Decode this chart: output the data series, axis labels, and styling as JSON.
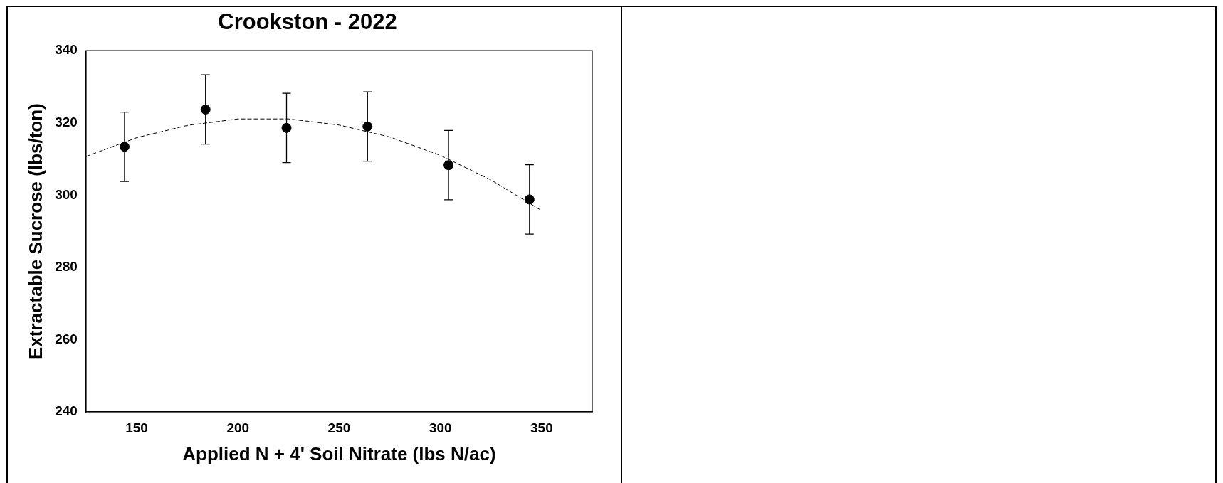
{
  "chart_data": {
    "type": "scatter",
    "title": "Crookston - 2022",
    "xlabel": "Applied N + 4' Soil Nitrate (lbs N/ac)",
    "ylabel": "Extractable Sucrose (lbs/ton)",
    "xlim": [
      125,
      375
    ],
    "xticks": [
      150,
      200,
      250,
      300,
      350
    ],
    "ylim": [
      240,
      340
    ],
    "yticks": [
      240,
      260,
      280,
      300,
      320,
      340
    ],
    "grid": false,
    "legend": false,
    "marker": "circle",
    "series": [
      {
        "color": "#000000",
        "x": [
          144,
          184,
          224,
          264,
          304,
          344
        ],
        "values": [
          313.4,
          323.7,
          318.6,
          319.0,
          308.3,
          298.8
        ],
        "errors": [
          9.6,
          9.6,
          9.6,
          9.6,
          9.6,
          9.6
        ]
      },
      {
        "type": "line",
        "color": "#000000",
        "marker": "none",
        "line_style": "dashed",
        "x": [
          125,
          150,
          175,
          200,
          225,
          250,
          275,
          300,
          325,
          350
        ],
        "values": [
          310.7,
          315.9,
          319.3,
          321.1,
          321.1,
          319.4,
          316.1,
          311.0,
          304.2,
          295.7
        ]
      }
    ]
  }
}
